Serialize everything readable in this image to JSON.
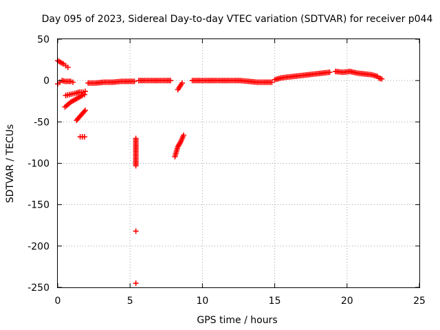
{
  "chart_data": {
    "type": "scatter",
    "title": "Day 095 of 2023, Sidereal Day-to-day VTEC variation (SDTVAR) for receiver p044",
    "xlabel": "GPS time / hours",
    "ylabel": "SDTVAR / TECUs",
    "xlim": [
      0,
      25
    ],
    "ylim": [
      -250,
      50
    ],
    "xticks": [
      0,
      5,
      10,
      15,
      20,
      25
    ],
    "yticks": [
      50,
      0,
      -50,
      -100,
      -150,
      -200,
      -250
    ],
    "xtick_labels": [
      "0",
      "5",
      "10",
      "15",
      "20",
      "25"
    ],
    "ytick_labels": [
      "50",
      "0",
      "-50",
      "-100",
      "-150",
      "-200",
      "-250"
    ],
    "grid": true,
    "marker": "+",
    "color": "#ff0000",
    "series": [
      {
        "name": "SDTVAR",
        "segments": [
          {
            "x": [
              0.0,
              0.2,
              0.4,
              0.55,
              0.7
            ],
            "y": [
              24,
              22,
              20,
              18,
              16
            ]
          },
          {
            "x": [
              0.0,
              0.15,
              0.3,
              0.5,
              0.7,
              0.9,
              1.05
            ],
            "y": [
              -4,
              -2,
              0,
              -1,
              -1,
              -1,
              -2
            ]
          },
          {
            "x": [
              0.55,
              0.8,
              1.05,
              1.3,
              1.5,
              1.75,
              1.9
            ],
            "y": [
              -18,
              -17,
              -16,
              -15,
              -14,
              -14,
              -13
            ]
          },
          {
            "x": [
              0.5,
              0.7,
              0.9,
              1.1,
              1.3,
              1.5,
              1.7,
              1.85
            ],
            "y": [
              -32,
              -29,
              -26,
              -24,
              -22,
              -20,
              -18,
              -17
            ]
          },
          {
            "x": [
              1.3,
              1.45,
              1.6,
              1.75,
              1.9
            ],
            "y": [
              -48,
              -45,
              -42,
              -39,
              -36
            ]
          },
          {
            "x": [
              1.55,
              1.7,
              1.85
            ],
            "y": [
              -68,
              -68,
              -68
            ]
          },
          {
            "x": [
              2.1,
              2.6,
              3.2,
              3.8,
              4.4,
              4.9,
              5.3
            ],
            "y": [
              -3,
              -3,
              -2,
              -2,
              -1,
              -1,
              -1
            ]
          },
          {
            "x": [
              5.4,
              5.4,
              5.4,
              5.4
            ],
            "y": [
              -70,
              -103,
              -182,
              -245
            ]
          },
          {
            "x": [
              5.6,
              6.1,
              6.6,
              7.0,
              7.4,
              7.8
            ],
            "y": [
              0,
              0,
              0,
              0,
              0,
              0
            ]
          },
          {
            "x": [
              8.1,
              8.2,
              8.3,
              8.4,
              8.5,
              8.6,
              8.7
            ],
            "y": [
              -92,
              -86,
              -80,
              -77,
              -74,
              -70,
              -66
            ]
          },
          {
            "x": [
              8.3,
              8.45,
              8.6
            ],
            "y": [
              -11,
              -7,
              -3
            ]
          },
          {
            "x": [
              9.3,
              9.8,
              10.3,
              10.8,
              11.4,
              12.0,
              12.6,
              13.2,
              13.8,
              14.3,
              14.8
            ],
            "y": [
              0,
              0,
              0,
              0,
              0,
              0,
              0,
              -1,
              -2,
              -2,
              -2
            ]
          },
          {
            "x": [
              15.0,
              15.4,
              15.8,
              16.3,
              16.8,
              17.3,
              17.8,
              18.3,
              18.8
            ],
            "y": [
              1,
              3,
              4,
              5,
              6,
              7,
              8,
              9,
              10
            ]
          },
          {
            "x": [
              19.2,
              19.7,
              20.2,
              20.7,
              21.2,
              21.7,
              22.1
            ],
            "y": [
              11,
              10,
              11,
              9,
              8,
              7,
              5
            ]
          },
          {
            "x": [
              22.2,
              22.4
            ],
            "y": [
              3,
              2
            ]
          }
        ]
      }
    ]
  }
}
